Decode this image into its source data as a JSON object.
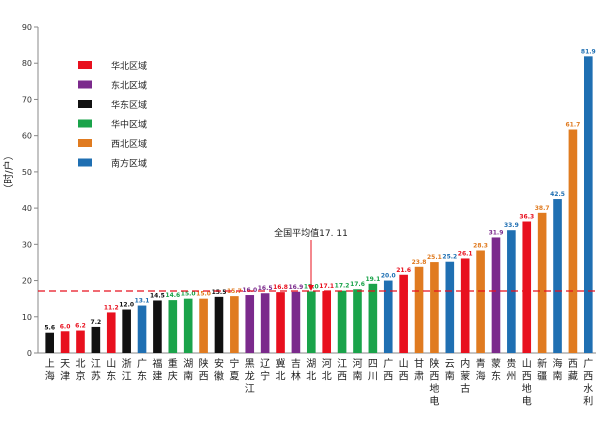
{
  "chart_data": {
    "type": "bar",
    "title": "",
    "ylabel": "（时/户）",
    "xlabel": "",
    "ylim": [
      0,
      90
    ],
    "yticks": [
      0,
      10,
      20,
      30,
      40,
      50,
      60,
      70,
      80,
      90
    ],
    "grid": false,
    "legend_position": "top-left",
    "legend": [
      {
        "name": "华北区域",
        "color": "#e8101e"
      },
      {
        "name": "东北区域",
        "color": "#7b2a8c"
      },
      {
        "name": "华东区域",
        "color": "#111111"
      },
      {
        "name": "华中区域",
        "color": "#1aa34a"
      },
      {
        "name": "西北区域",
        "color": "#e07b20"
      },
      {
        "name": "南方区域",
        "color": "#1f6fb2"
      }
    ],
    "categories": [
      "上海",
      "天津",
      "北京",
      "江苏",
      "山东",
      "浙江",
      "广东",
      "福建",
      "重庆",
      "湖南",
      "陕西",
      "安徽",
      "宁夏",
      "黑龙江",
      "辽宁",
      "冀北",
      "吉林",
      "湖北",
      "河北",
      "江西",
      "河南",
      "四川",
      "广西",
      "山西",
      "甘肃",
      "陕西地电",
      "云南",
      "内蒙古",
      "青海",
      "蒙东",
      "贵州",
      "山西地电",
      "新疆",
      "海南",
      "西藏",
      "广西水利"
    ],
    "values": [
      5.6,
      6.0,
      6.2,
      7.2,
      11.2,
      12.0,
      13.1,
      14.5,
      14.6,
      15.0,
      15.0,
      15.5,
      15.7,
      16.0,
      16.5,
      16.8,
      16.9,
      17.0,
      17.1,
      17.2,
      17.6,
      19.1,
      20.0,
      21.6,
      23.8,
      25.1,
      25.2,
      26.1,
      28.3,
      31.9,
      33.9,
      36.3,
      38.7,
      42.5,
      61.7,
      81.9
    ],
    "value_labels": [
      "5.6",
      "6.0",
      "6.2",
      "7.2",
      "11.2",
      "12.0",
      "13.1",
      "14.5",
      "14.6",
      "15.0",
      "15.0",
      "15.5",
      "15.7",
      "16.0",
      "16.5",
      "16.8",
      "16.9",
      "17.0",
      "17.1",
      "17.2",
      "17.6",
      "19.1",
      "20.0",
      "21.6",
      "23.8",
      "25.1",
      "25.2",
      "26.1",
      "28.3",
      "31.9",
      "33.9",
      "36.3",
      "38.7",
      "42.5",
      "61.7",
      "81.9"
    ],
    "regions": [
      "华东区域",
      "华北区域",
      "华北区域",
      "华东区域",
      "华北区域",
      "华东区域",
      "南方区域",
      "华东区域",
      "华中区域",
      "华中区域",
      "西北区域",
      "华东区域",
      "西北区域",
      "东北区域",
      "东北区域",
      "华北区域",
      "东北区域",
      "华中区域",
      "华北区域",
      "华中区域",
      "华中区域",
      "华中区域",
      "南方区域",
      "华北区域",
      "西北区域",
      "西北区域",
      "南方区域",
      "华北区域",
      "西北区域",
      "东北区域",
      "南方区域",
      "华北区域",
      "西北区域",
      "南方区域",
      "西北区域",
      "南方区域"
    ],
    "reference_line": {
      "value": 17.11,
      "label": "全国平均值17. 11",
      "color": "#e8101e",
      "style": "dashed"
    }
  }
}
